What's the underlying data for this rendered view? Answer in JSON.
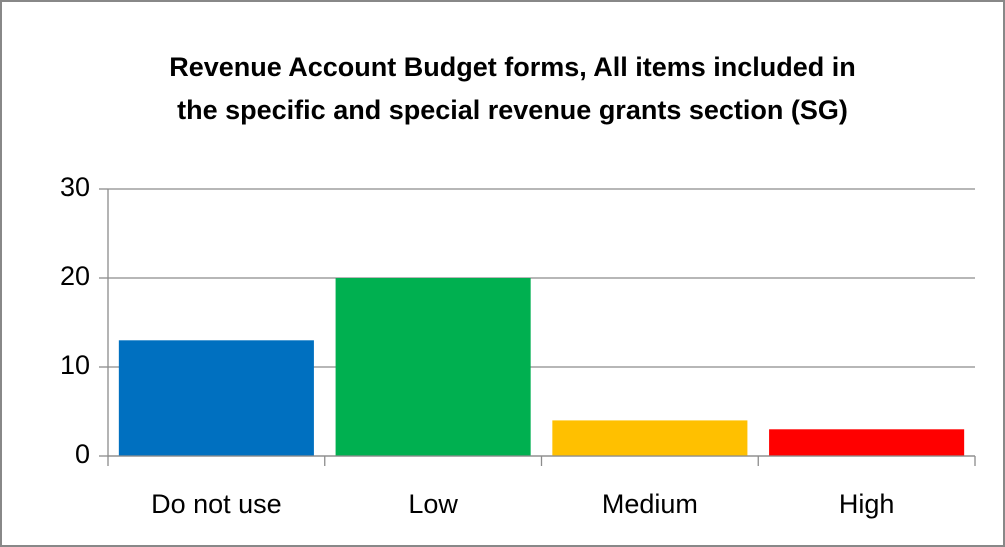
{
  "chart_data": {
    "type": "bar",
    "title": "Revenue Account Budget forms, All items included in the specific and special revenue grants section (SG)",
    "categories": [
      "Do not use",
      "Low",
      "Medium",
      "High"
    ],
    "values": [
      13,
      20,
      4,
      3
    ],
    "colors": [
      "#0070c0",
      "#00b050",
      "#ffc000",
      "#ff0000"
    ],
    "ylim": [
      0,
      30
    ],
    "yticks": [
      0,
      10,
      20,
      30
    ],
    "grid": true
  }
}
